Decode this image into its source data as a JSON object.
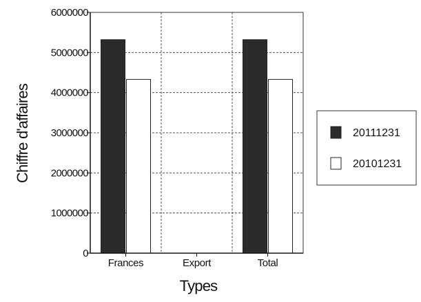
{
  "chart_data": {
    "type": "bar",
    "title": "",
    "xlabel": "Types",
    "ylabel": "Chiffre d'affaires",
    "categories": [
      "Frances",
      "Export",
      "Total"
    ],
    "series": [
      {
        "name": "20111231",
        "values": [
          5320000,
          0,
          5320000
        ],
        "color": "#2b2b2b"
      },
      {
        "name": "20101231",
        "values": [
          4330000,
          0,
          4330000
        ],
        "color": "#ffffff"
      }
    ],
    "ylim": [
      0,
      6000000
    ],
    "yticks": [
      0,
      1000000,
      2000000,
      3000000,
      4000000,
      5000000,
      6000000
    ],
    "ytick_labels": [
      "0",
      "1000000",
      "2000000",
      "3000000",
      "4000000",
      "5000000",
      "6000000"
    ],
    "grid": true,
    "legend_position": "right"
  }
}
